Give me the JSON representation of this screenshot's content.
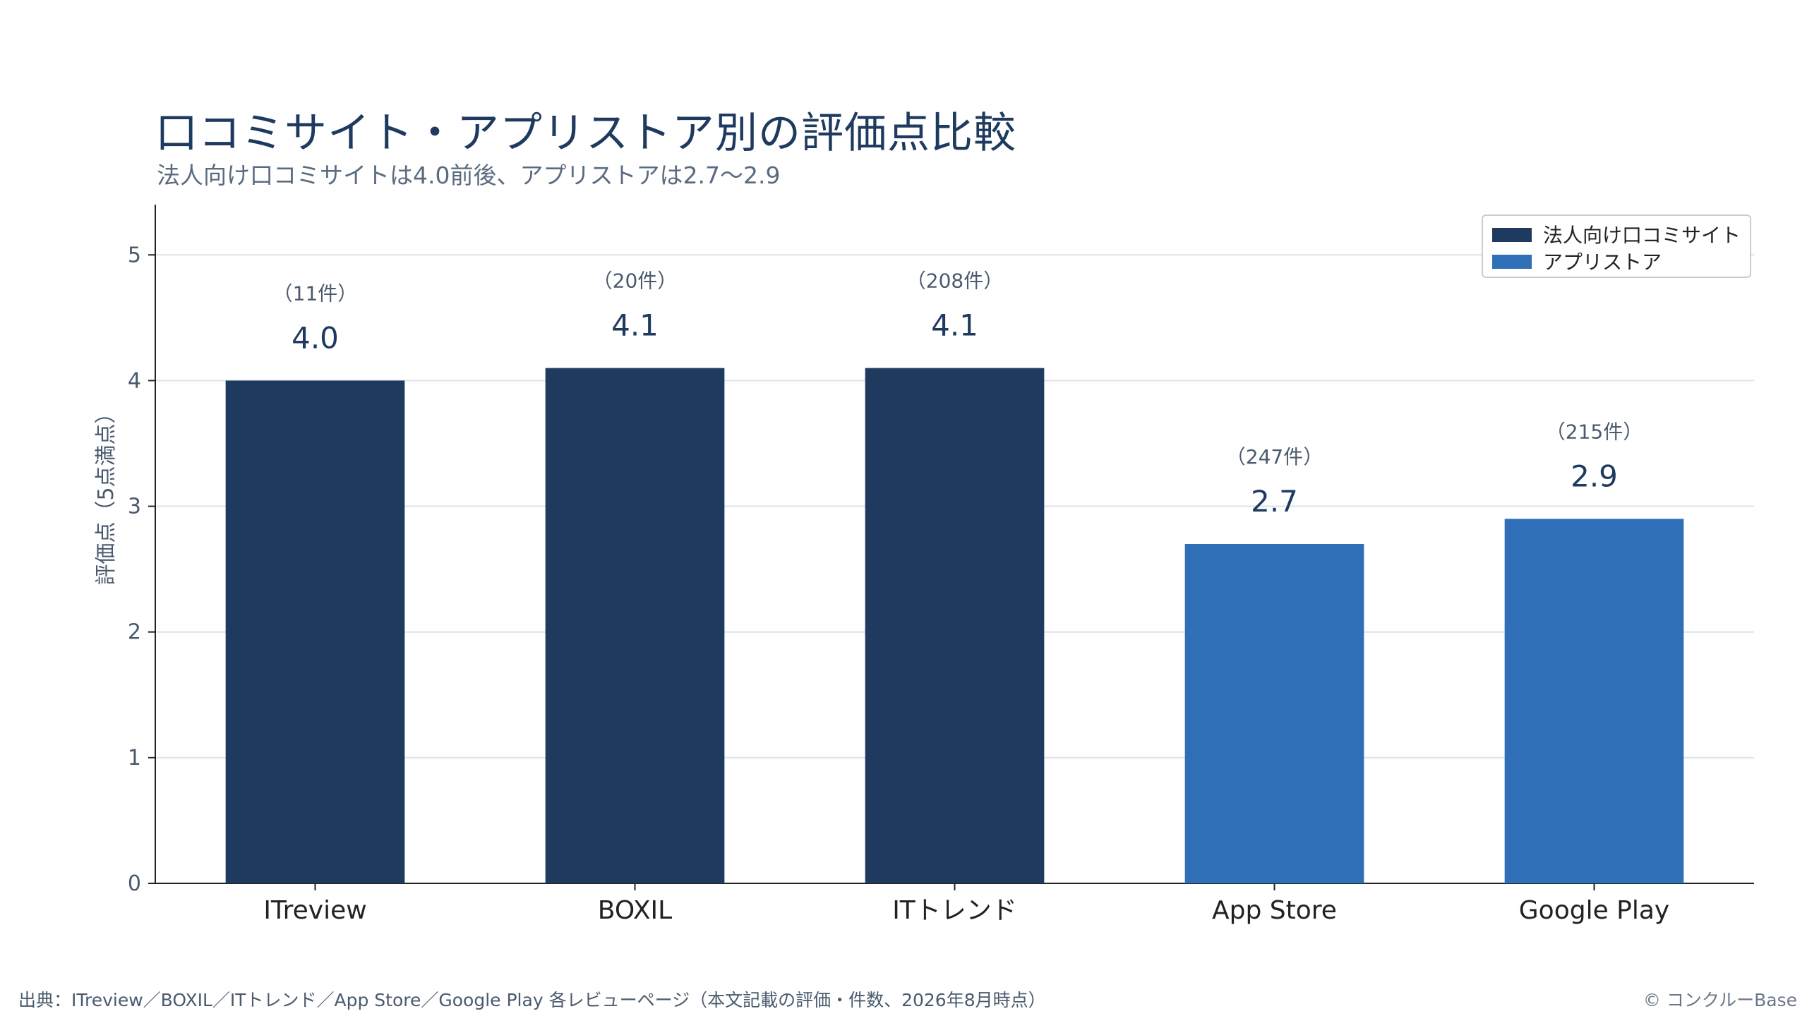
{
  "header": {
    "title": "口コミサイト・アプリストア別の評価点比較",
    "subtitle": "法人向け口コミサイトは4.0前後、アプリストアは2.7〜2.9"
  },
  "footer": {
    "source": "出典：ITreview／BOXIL／ITトレンド／App Store／Google Play 各レビューページ（本文記載の評価・件数、2026年8月時点）",
    "copyright": "© コンクルーBase"
  },
  "chart_data": {
    "type": "bar",
    "title": "口コミサイト・アプリストア別の評価点比較",
    "subtitle": "法人向け口コミサイトは4.0前後、アプリストアは2.7〜2.9",
    "xlabel": "",
    "ylabel": "評価点（5点満点）",
    "ylim": [
      0,
      5.4
    ],
    "yticks": [
      "0",
      "1",
      "2",
      "3",
      "4",
      "5"
    ],
    "grid": true,
    "legend_position": "top-right",
    "categories": [
      "ITreview",
      "BOXIL",
      "ITトレンド",
      "App Store",
      "Google Play"
    ],
    "values": [
      4.0,
      4.1,
      4.1,
      2.7,
      2.9
    ],
    "value_labels": [
      "4.0",
      "4.1",
      "4.1",
      "2.7",
      "2.9"
    ],
    "count_labels": [
      "（11件）",
      "（20件）",
      "（208件）",
      "（247件）",
      "（215件）"
    ],
    "groups": [
      0,
      0,
      0,
      1,
      1
    ],
    "series": [
      {
        "name": "法人向け口コミサイト",
        "color": "#1f3a5f"
      },
      {
        "name": "アプリストア",
        "color": "#2f6fb8"
      }
    ]
  }
}
